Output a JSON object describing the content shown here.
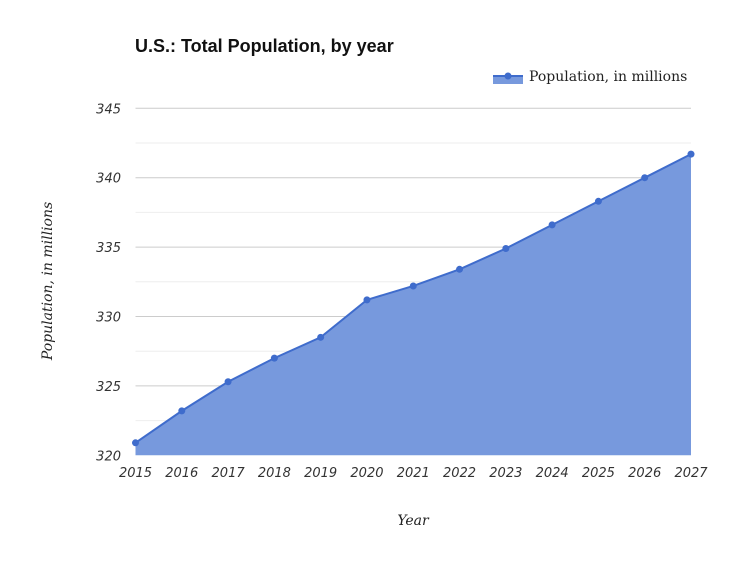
{
  "chart_data": {
    "type": "area",
    "title": "U.S.: Total Population, by year",
    "xlabel": "Year",
    "ylabel": "Population, in millions",
    "categories": [
      "2015",
      "2016",
      "2017",
      "2018",
      "2019",
      "2020",
      "2021",
      "2022",
      "2023",
      "2024",
      "2025",
      "2026",
      "2027"
    ],
    "series": [
      {
        "name": "Population, in millions",
        "values": [
          320.9,
          323.2,
          325.3,
          327.0,
          328.5,
          331.2,
          332.2,
          333.4,
          334.9,
          336.6,
          338.3,
          340.0,
          341.7
        ]
      }
    ],
    "ylim": [
      320,
      345
    ],
    "yticks": [
      320,
      325,
      330,
      335,
      340,
      345
    ],
    "grid": true,
    "legend": "top-right",
    "colors": {
      "fill": "#7799dd",
      "line": "#3f6ccc",
      "grid": "#cccccc",
      "minor_grid": "#eeeeee"
    }
  }
}
